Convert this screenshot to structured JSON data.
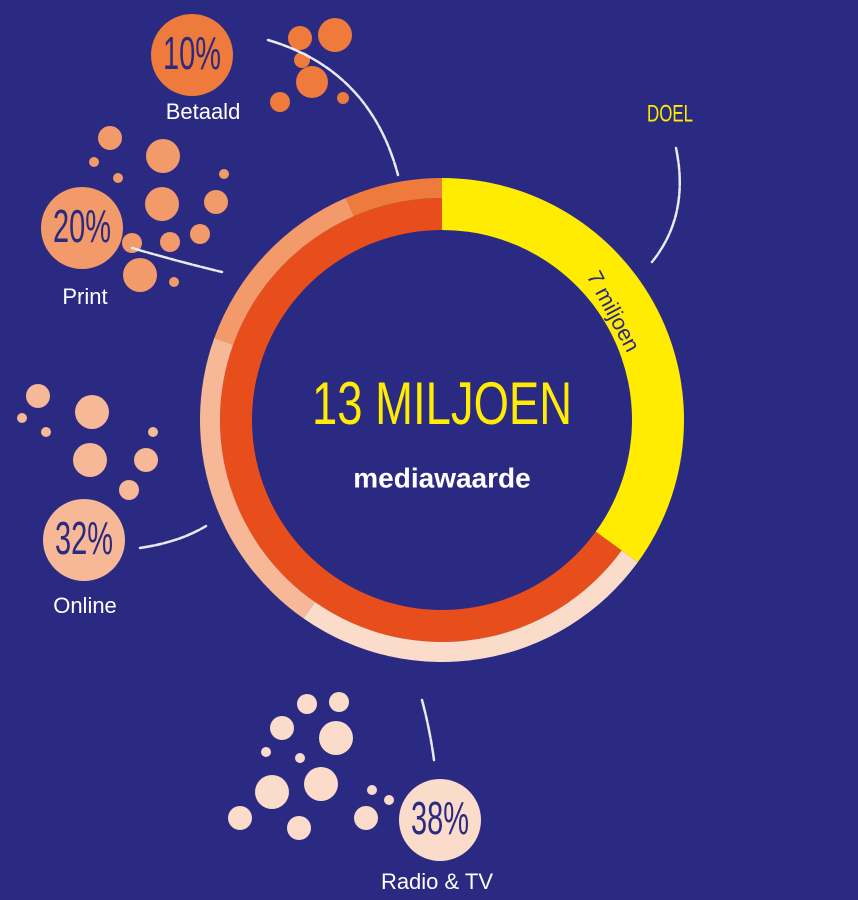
{
  "chart_data": {
    "type": "donut",
    "total": {
      "value": 13,
      "label": "13 MILJOEN",
      "color": "#e84e1b"
    },
    "total_caption": "mediawaarde",
    "goal": {
      "value": 7,
      "label": "7 miljoen",
      "title": "DOEL",
      "color": "#ffec00"
    },
    "categories": [
      "Betaald",
      "Print",
      "Online",
      "Radio & TV"
    ],
    "values": [
      10,
      20,
      32,
      38
    ],
    "value_labels": [
      "10%",
      "20%",
      "32%",
      "38%"
    ],
    "colors": [
      "#ee7a3c",
      "#f29a6a",
      "#f6b896",
      "#fbdccb"
    ]
  }
}
